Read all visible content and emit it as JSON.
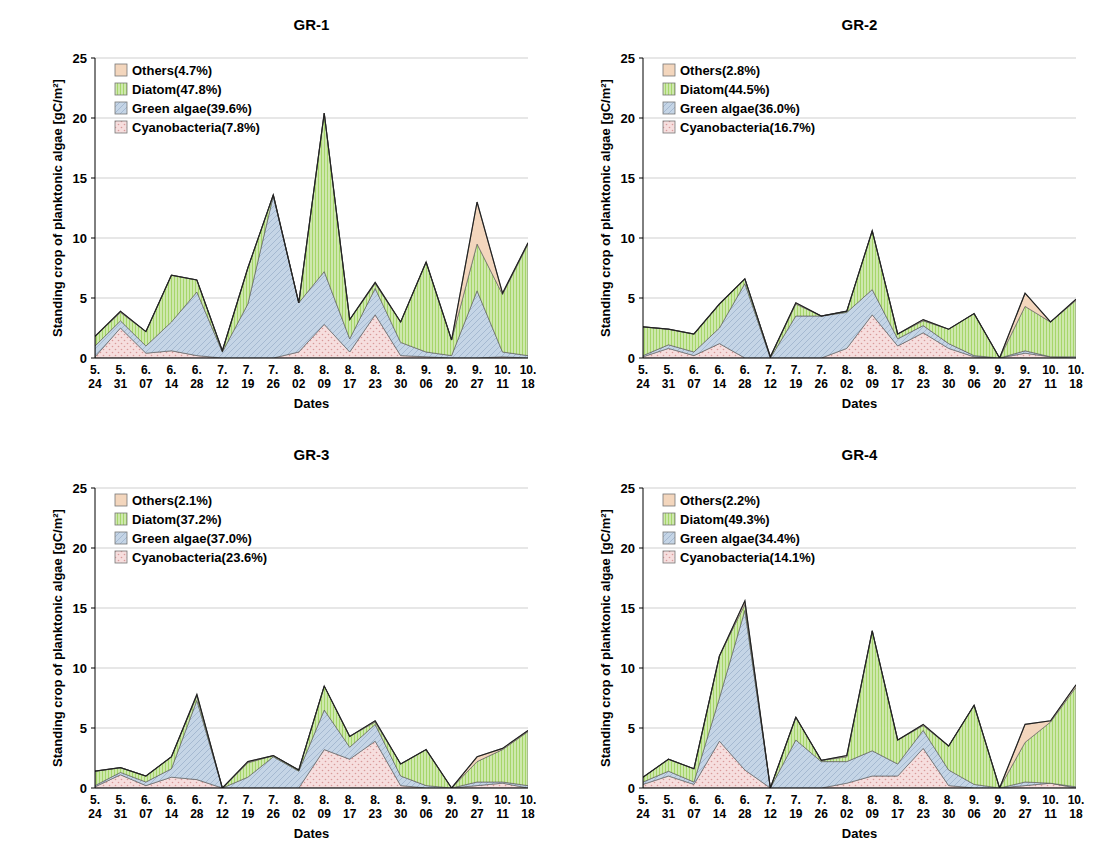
{
  "chart_data": [
    {
      "type": "area",
      "title": "GR-1",
      "x_label": "Dates",
      "y_label": "Standing crop of planktonic algae [gC/m²]",
      "categories": [
        "5. 24",
        "5. 31",
        "6. 07",
        "6. 14",
        "6. 28",
        "7. 12",
        "7. 19",
        "7. 26",
        "8. 02",
        "8. 09",
        "8. 17",
        "8. 23",
        "8. 30",
        "9. 06",
        "9. 20",
        "9. 27",
        "10. 11",
        "10. 18"
      ],
      "series": [
        {
          "name": "Cyanobacteria(7.8%)",
          "color": "#f6dede",
          "values": [
            0.1,
            2.5,
            0.4,
            0.6,
            0.2,
            0,
            0,
            0,
            0.5,
            2.8,
            0.5,
            3.6,
            0.2,
            0.1,
            0,
            0,
            0.1,
            0
          ]
        },
        {
          "name": "Green algae(39.6%)",
          "color": "#c5d5e6",
          "values": [
            0.9,
            0.6,
            0.6,
            2.4,
            5.3,
            0.5,
            4.5,
            13.5,
            4.1,
            4.4,
            1.1,
            2.2,
            1.1,
            0.4,
            0.2,
            5.6,
            0.4,
            0.2
          ]
        },
        {
          "name": "Diatom(47.8%)",
          "color": "#a6d66a",
          "values": [
            0.8,
            0.7,
            1.2,
            3.9,
            1.0,
            0.1,
            3.0,
            0.1,
            0,
            13.2,
            1.6,
            0.4,
            1.7,
            7.5,
            1.3,
            3.9,
            4.8,
            9.3
          ]
        },
        {
          "name": "Others(4.7%)",
          "color": "#f3d6bd",
          "values": [
            0,
            0.1,
            0,
            0,
            0,
            0,
            0,
            0,
            0,
            0,
            0,
            0.1,
            0,
            0,
            0,
            3.5,
            0.1,
            0.1
          ]
        }
      ],
      "ylim": [
        0,
        25
      ],
      "yticks": [
        0,
        5,
        10,
        15,
        20,
        25
      ],
      "grid": true,
      "stacked": true,
      "legend": "upper left"
    },
    {
      "type": "area",
      "title": "GR-2",
      "x_label": "Dates",
      "y_label": "Standing crop of planktonic algae [gC/m²]",
      "categories": [
        "5. 24",
        "5. 31",
        "6. 07",
        "6. 14",
        "6. 28",
        "7. 12",
        "7. 19",
        "7. 26",
        "8. 02",
        "8. 09",
        "8. 17",
        "8. 23",
        "8. 30",
        "9. 06",
        "9. 20",
        "9. 27",
        "10. 11",
        "10. 18"
      ],
      "series": [
        {
          "name": "Cyanobacteria(16.7%)",
          "color": "#f6dede",
          "values": [
            0.1,
            0.8,
            0.2,
            1.2,
            0,
            0,
            0,
            0,
            0.8,
            3.6,
            1.0,
            2.1,
            0.8,
            0.1,
            0,
            0.4,
            0.1,
            0
          ]
        },
        {
          "name": "Green algae(36.0%)",
          "color": "#c5d5e6",
          "values": [
            0.1,
            0.3,
            0.3,
            1.3,
            6.2,
            0,
            3.5,
            3.5,
            3.0,
            2.1,
            0.6,
            0.6,
            0.4,
            0.1,
            0,
            0.2,
            0,
            0.1
          ]
        },
        {
          "name": "Diatom(44.5%)",
          "color": "#a6d66a",
          "values": [
            2.4,
            1.3,
            1.5,
            2.0,
            0.4,
            0.1,
            1.0,
            0,
            0.1,
            4.9,
            0.4,
            0.4,
            1.2,
            3.5,
            0,
            3.7,
            2.9,
            4.7
          ]
        },
        {
          "name": "Others(2.8%)",
          "color": "#f3d6bd",
          "values": [
            0,
            0,
            0,
            0,
            0,
            0,
            0.1,
            0,
            0,
            0,
            0,
            0.1,
            0,
            0,
            0,
            1.1,
            0,
            0.1
          ]
        }
      ],
      "ylim": [
        0,
        25
      ],
      "yticks": [
        0,
        5,
        10,
        15,
        20,
        25
      ],
      "grid": true,
      "stacked": true,
      "legend": "upper left"
    },
    {
      "type": "area",
      "title": "GR-3",
      "x_label": "Dates",
      "y_label": "Standing crop of planktonic algae [gC/m²]",
      "categories": [
        "5. 24",
        "5. 31",
        "6. 07",
        "6. 14",
        "6. 28",
        "7. 12",
        "7. 19",
        "7. 26",
        "8. 02",
        "8. 09",
        "8. 17",
        "8. 23",
        "8. 30",
        "9. 06",
        "9. 20",
        "9. 27",
        "10. 11",
        "10. 18"
      ],
      "series": [
        {
          "name": "Cyanobacteria(23.6%)",
          "color": "#f6dede",
          "values": [
            0.1,
            1.1,
            0.2,
            0.9,
            0.7,
            0,
            0,
            0,
            0,
            3.2,
            2.4,
            3.9,
            0.2,
            0,
            0,
            0.2,
            0.4,
            0
          ]
        },
        {
          "name": "Green algae(37.0%)",
          "color": "#c5d5e6",
          "values": [
            0.1,
            0.2,
            0.3,
            0.7,
            6.6,
            0,
            0.9,
            2.6,
            1.4,
            3.3,
            1.0,
            1.4,
            0.8,
            0.2,
            0,
            0.3,
            0.1,
            0.2
          ]
        },
        {
          "name": "Diatom(37.2%)",
          "color": "#a6d66a",
          "values": [
            1.2,
            0.4,
            0.5,
            1.0,
            0.4,
            0,
            1.2,
            0.1,
            0.1,
            2.0,
            0.9,
            0.2,
            1.0,
            3.0,
            0,
            1.7,
            2.7,
            4.5
          ]
        },
        {
          "name": "Others(2.1%)",
          "color": "#f3d6bd",
          "values": [
            0,
            0,
            0,
            0,
            0.1,
            0,
            0.1,
            0,
            0,
            0,
            0,
            0.1,
            0,
            0,
            0,
            0.4,
            0.1,
            0.1
          ]
        }
      ],
      "ylim": [
        0,
        25
      ],
      "yticks": [
        0,
        5,
        10,
        15,
        20,
        25
      ],
      "grid": true,
      "stacked": true,
      "legend": "upper left"
    },
    {
      "type": "area",
      "title": "GR-4",
      "x_label": "Dates",
      "y_label": "Standing crop of planktonic algae [gC/m²]",
      "categories": [
        "5. 24",
        "5. 31",
        "6. 07",
        "6. 14",
        "6. 28",
        "7. 12",
        "7. 19",
        "7. 26",
        "8. 02",
        "8. 09",
        "8. 17",
        "8. 23",
        "8. 30",
        "9. 06",
        "9. 20",
        "9. 27",
        "10. 11",
        "10. 18"
      ],
      "series": [
        {
          "name": "Cyanobacteria(14.1%)",
          "color": "#f6dede",
          "values": [
            0.3,
            1.0,
            0.3,
            3.9,
            1.5,
            0,
            0,
            0,
            0.4,
            1.0,
            1.0,
            3.3,
            0.2,
            0,
            0,
            0.2,
            0.4,
            0
          ]
        },
        {
          "name": "Green algae(34.4%)",
          "color": "#c5d5e6",
          "values": [
            0.2,
            0.4,
            0.2,
            3.6,
            13.3,
            0,
            4.0,
            2.2,
            1.8,
            2.1,
            1.0,
            1.5,
            1.3,
            0.3,
            0,
            0.3,
            0,
            0.1
          ]
        },
        {
          "name": "Diatom(49.3%)",
          "color": "#a6d66a",
          "values": [
            0.4,
            1.0,
            1.1,
            3.5,
            0.5,
            0,
            1.9,
            0.1,
            0.4,
            10.0,
            2.0,
            0.4,
            2.0,
            6.6,
            0,
            3.3,
            5.1,
            8.3
          ]
        },
        {
          "name": "Others(2.2%)",
          "color": "#f3d6bd",
          "values": [
            0,
            0,
            0,
            0,
            0.3,
            0,
            0,
            0,
            0.1,
            0,
            0,
            0.1,
            0,
            0,
            0,
            1.5,
            0.1,
            0.2
          ]
        }
      ],
      "ylim": [
        0,
        25
      ],
      "yticks": [
        0,
        5,
        10,
        15,
        20,
        25
      ],
      "grid": true,
      "stacked": true,
      "legend": "upper left"
    }
  ]
}
